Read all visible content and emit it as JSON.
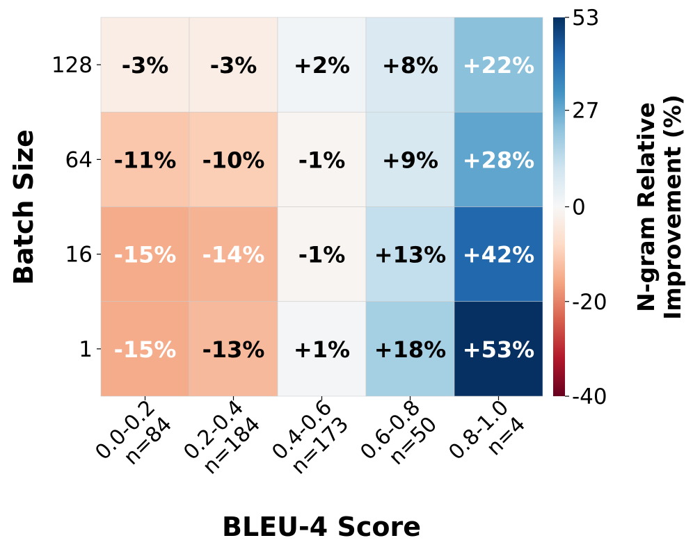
{
  "chart_data": {
    "type": "heatmap",
    "xlabel": "BLEU-4 Score",
    "ylabel": "Batch Size",
    "x_categories": [
      {
        "range": "0.0-0.2",
        "n": "n=84"
      },
      {
        "range": "0.2-0.4",
        "n": "n=184"
      },
      {
        "range": "0.4-0.6",
        "n": "n=173"
      },
      {
        "range": "0.6-0.8",
        "n": "n=50"
      },
      {
        "range": "0.8-1.0",
        "n": "n=4"
      }
    ],
    "y_categories": [
      "128",
      "64",
      "16",
      "1"
    ],
    "values": [
      [
        -3,
        -3,
        2,
        8,
        22
      ],
      [
        -11,
        -10,
        -1,
        9,
        28
      ],
      [
        -15,
        -14,
        -1,
        13,
        42
      ],
      [
        -15,
        -13,
        1,
        18,
        53
      ]
    ],
    "labels": [
      [
        "-3%",
        "-3%",
        "+2%",
        "+8%",
        "+22%"
      ],
      [
        "-11%",
        "-10%",
        "-1%",
        "+9%",
        "+28%"
      ],
      [
        "-15%",
        "-14%",
        "-1%",
        "+13%",
        "+42%"
      ],
      [
        "-15%",
        "-13%",
        "+1%",
        "+18%",
        "+53%"
      ]
    ],
    "colormap": "RdBu",
    "colorbar": {
      "label_lines": [
        "N-gram Relative",
        "Improvement (%)"
      ],
      "min": -40,
      "center": 0,
      "max": 53,
      "ticks": [
        53,
        27,
        0,
        -20,
        -40
      ],
      "tick_labels": [
        "53",
        "27",
        "0",
        "-20",
        "-40"
      ]
    }
  }
}
